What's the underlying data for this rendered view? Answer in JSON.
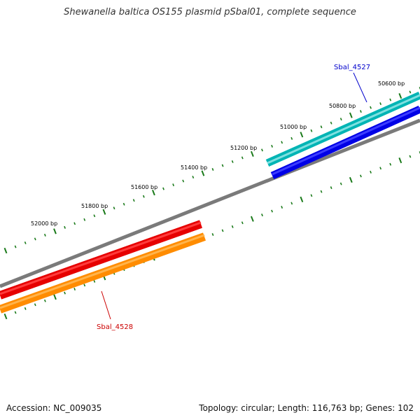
{
  "title": "Shewanella baltica OS155 plasmid pSbal01, complete sequence",
  "footer": {
    "accession": "Accession: NC_009035",
    "summary": "Topology: circular; Length: 116,763 bp; Genes: 102"
  },
  "ticks": {
    "color": "#1a7a1a",
    "labels": [
      "50600 bp",
      "50800 bp",
      "51000 bp",
      "51200 bp",
      "51400 bp",
      "51600 bp",
      "51800 bp",
      "52000 bp"
    ]
  },
  "backbone": {
    "color": "#7a7a7a"
  },
  "genes": [
    {
      "label": "Sbal_4527",
      "color": "#00b4b4",
      "label_color": "#0000cc",
      "strand": "forward"
    },
    {
      "label": "",
      "color": "#0000e6",
      "strand": "forward"
    },
    {
      "label": "Sbal_4528",
      "color": "#e60000",
      "label_color": "#cc0000",
      "strand": "reverse"
    },
    {
      "label": "",
      "color": "#ff8c00",
      "strand": "reverse"
    }
  ]
}
